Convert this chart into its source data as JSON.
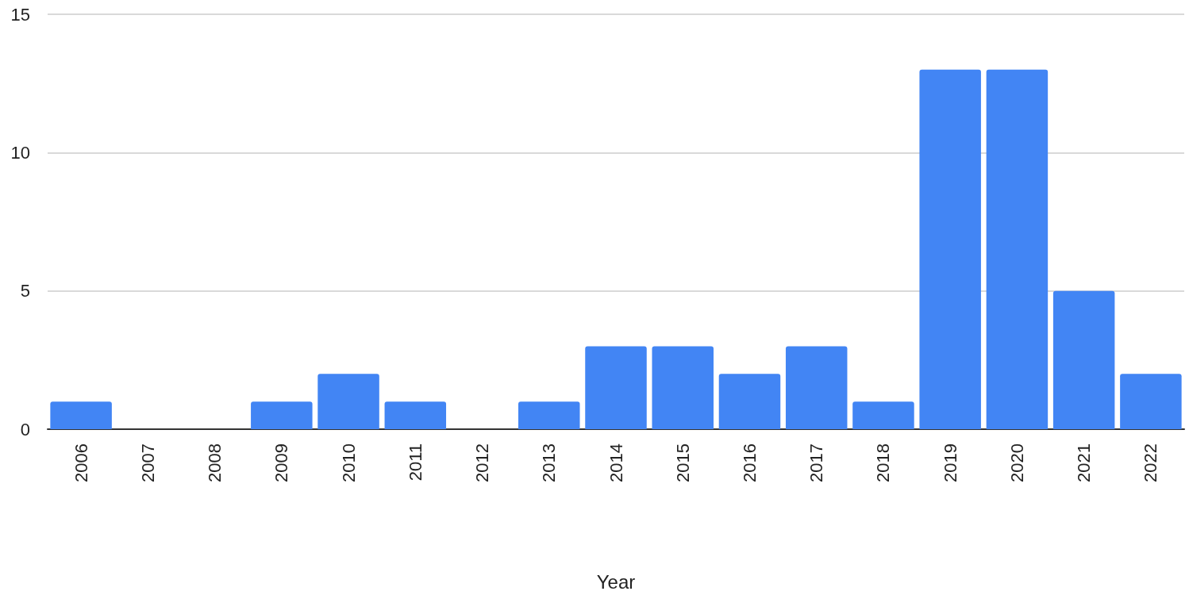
{
  "chart_data": {
    "type": "bar",
    "xlabel": "Year",
    "categories": [
      "2006",
      "2007",
      "2008",
      "2009",
      "2010",
      "2011",
      "2012",
      "2013",
      "2014",
      "2015",
      "2016",
      "2017",
      "2018",
      "2019",
      "2020",
      "2021",
      "2022"
    ],
    "values": [
      1,
      0,
      0,
      1,
      2,
      1,
      0,
      1,
      3,
      3,
      2,
      3,
      1,
      13,
      13,
      5,
      2
    ],
    "color": "#4285f4",
    "ylim": [
      0,
      15
    ],
    "yticks": [
      0,
      5,
      10,
      15
    ],
    "grid": "y"
  }
}
